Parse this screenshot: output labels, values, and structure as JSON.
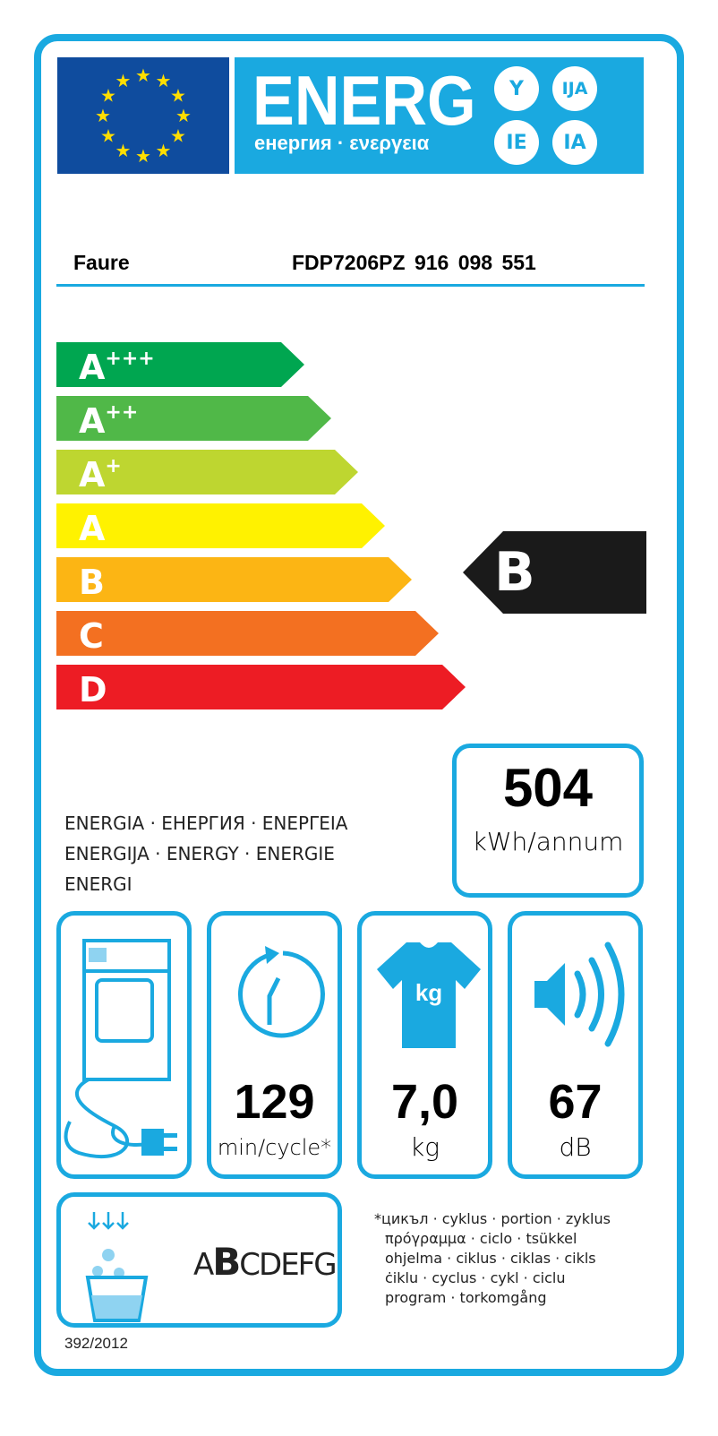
{
  "header": {
    "logo_word": "ENERG",
    "logo_subtitle": "енергия · ενεργεια",
    "suffixes": [
      "Y",
      "IJA",
      "IE",
      "IA"
    ]
  },
  "product": {
    "supplier": "Faure",
    "model": "FDP7206PZ  916 098 551"
  },
  "scale": {
    "classes": [
      {
        "label": "A",
        "sup": "+++",
        "color": "#00a650"
      },
      {
        "label": "A",
        "sup": "++",
        "color": "#50b848"
      },
      {
        "label": "A",
        "sup": "+",
        "color": "#bed630"
      },
      {
        "label": "A",
        "sup": "",
        "color": "#fff200"
      },
      {
        "label": "B",
        "sup": "",
        "color": "#fcb514"
      },
      {
        "label": "C",
        "sup": "",
        "color": "#f37021"
      },
      {
        "label": "D",
        "sup": "",
        "color": "#ed1c24"
      }
    ],
    "rating": "B",
    "rating_color": "#1a1a1a"
  },
  "energy": {
    "value": "504",
    "unit": "kWh/annum",
    "label_lines": [
      "ENERGIA · ЕНЕРГИЯ · ΕΝΕΡΓΕΙΑ",
      "ENERGIJA · ENERGY · ENERGIE",
      "ENERGI"
    ]
  },
  "specs": {
    "cycle": {
      "value": "129",
      "unit": "min/cycle*"
    },
    "capacity": {
      "value": "7,0",
      "unit": "kg",
      "icon_text": "kg"
    },
    "noise": {
      "value": "67",
      "unit": "dB"
    }
  },
  "condensation": {
    "classes_prefix": "A",
    "selected": "B",
    "classes_suffix": "CDEFG"
  },
  "footnote": {
    "lines": [
      "*цикъл · cyklus · portion · zyklus",
      "πρόγραμμα · ciclo · tsükkel",
      "ohjelma · ciklus · ciklas · cikls",
      "ċiklu · cyclus · cykl · ciclu",
      "program · torkomgång"
    ]
  },
  "regulation": "392/2012",
  "colors": {
    "accent": "#1aa9e0",
    "eu_blue": "#0f4c9e",
    "eu_star": "#ffde00"
  }
}
